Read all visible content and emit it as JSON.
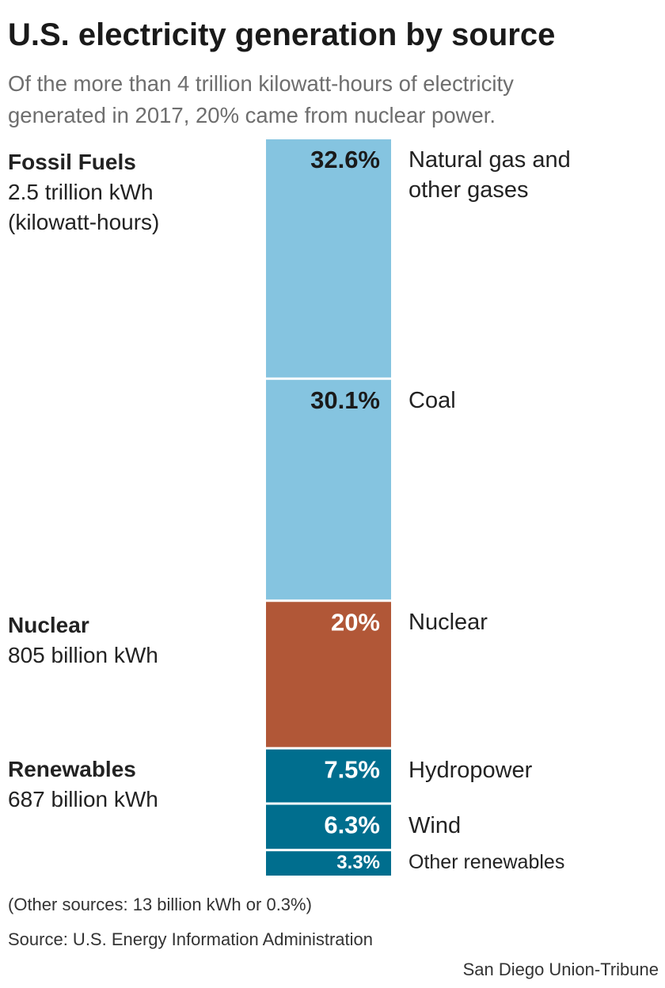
{
  "title": "U.S. electricity generation by source",
  "subtitle": [
    "Of the more than 4 trillion kilowatt-hours of electricity",
    "generated in 2017, 20% came from nuclear power."
  ],
  "groups": [
    {
      "name": "Fossil Fuels",
      "lines": [
        "2.5 trillion kWh",
        "(kilowatt-hours)"
      ]
    },
    {
      "name": "Nuclear",
      "lines": [
        "805 billion kWh"
      ]
    },
    {
      "name": "Renewables",
      "lines": [
        "687 billion kWh"
      ]
    }
  ],
  "chart_data": {
    "type": "bar",
    "orientation": "stacked-vertical",
    "categories": [
      "Natural gas and other gases",
      "Coal",
      "Nuclear",
      "Hydropower",
      "Wind",
      "Other renewables"
    ],
    "category_label_lines": [
      [
        "Natural gas and",
        "other gases"
      ],
      [
        "Coal"
      ],
      [
        "Nuclear"
      ],
      [
        "Hydropower"
      ],
      [
        "Wind"
      ],
      [
        "Other renewables"
      ]
    ],
    "values": [
      32.6,
      30.1,
      20,
      7.5,
      6.3,
      3.3
    ],
    "value_labels": [
      "32.6%",
      "30.1%",
      "20%",
      "7.5%",
      "6.3%",
      "3.3%"
    ],
    "group_of": [
      "Fossil Fuels",
      "Fossil Fuels",
      "Nuclear",
      "Renewables",
      "Renewables",
      "Renewables"
    ],
    "unit": "%",
    "colors": {
      "Fossil Fuels": "#85c4e0",
      "Nuclear": "#b15737",
      "Renewables": "#006e8e",
      "label_dark": "#1a1a1a",
      "label_light": "#ffffff"
    }
  },
  "footnotes": {
    "other_sources": "(Other sources: 13 billion kWh or 0.3%)",
    "source": "Source: U.S. Energy Information Administration",
    "credit": "San Diego Union-Tribune"
  }
}
